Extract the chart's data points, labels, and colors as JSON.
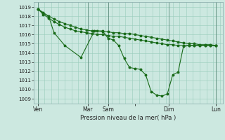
{
  "background_color": "#cce8e0",
  "grid_color": "#99ccbb",
  "line_color": "#1a6b1a",
  "marker_color": "#1a6b1a",
  "xlabel_text": "Pression niveau de la mer( hPa )",
  "ylim": [
    1008.5,
    1019.5
  ],
  "yticks": [
    1009,
    1010,
    1011,
    1012,
    1013,
    1014,
    1015,
    1016,
    1017,
    1018,
    1019
  ],
  "xlim": [
    0,
    14.0
  ],
  "day_positions": [
    0.3,
    4.0,
    5.5,
    7.5,
    10.0,
    13.5
  ],
  "day_labels": [
    "Ven",
    "Mar",
    "Sam",
    "",
    "Dim",
    "Lun"
  ],
  "vline_positions": [
    0.3,
    4.0,
    5.5,
    10.0,
    13.5
  ],
  "line1": {
    "x": [
      0.3,
      0.7,
      1.1,
      1.5,
      1.9,
      2.3,
      2.7,
      3.1,
      3.5,
      3.9,
      4.3,
      4.7,
      5.1,
      5.5,
      5.9,
      6.3,
      6.7,
      7.1,
      7.5,
      7.9,
      8.3,
      8.7,
      9.1,
      9.5,
      9.9,
      10.3,
      10.7,
      11.1,
      11.5,
      11.9,
      12.3,
      12.7,
      13.1,
      13.5
    ],
    "y": [
      1018.8,
      1018.4,
      1018.0,
      1017.7,
      1017.4,
      1017.2,
      1017.0,
      1016.8,
      1016.6,
      1016.5,
      1016.4,
      1016.4,
      1016.3,
      1016.3,
      1016.2,
      1016.2,
      1016.1,
      1016.1,
      1016.0,
      1015.9,
      1015.8,
      1015.7,
      1015.6,
      1015.5,
      1015.4,
      1015.3,
      1015.2,
      1015.1,
      1015.0,
      1015.0,
      1014.9,
      1014.9,
      1014.9,
      1014.8
    ]
  },
  "line2": {
    "x": [
      0.3,
      0.7,
      1.1,
      1.5,
      1.9,
      2.3,
      2.7,
      3.1,
      3.5,
      3.9,
      4.3,
      4.7,
      5.1,
      5.5,
      5.9,
      6.3,
      6.7,
      7.1,
      7.5,
      7.9,
      8.3,
      8.7,
      9.1,
      9.5,
      9.9,
      10.3,
      10.7,
      11.1,
      11.5,
      11.9,
      12.3,
      12.7,
      13.1,
      13.5
    ],
    "y": [
      1018.8,
      1018.2,
      1017.8,
      1017.4,
      1017.1,
      1016.8,
      1016.6,
      1016.4,
      1016.3,
      1016.2,
      1016.1,
      1016.0,
      1016.0,
      1015.9,
      1015.8,
      1015.8,
      1015.7,
      1015.6,
      1015.5,
      1015.4,
      1015.3,
      1015.2,
      1015.1,
      1015.0,
      1014.9,
      1014.9,
      1014.8,
      1014.8,
      1014.8,
      1014.8,
      1014.8,
      1014.8,
      1014.8,
      1014.8
    ]
  },
  "line3": {
    "x": [
      0.3,
      0.7,
      1.1,
      1.5,
      2.3,
      3.5,
      4.5,
      5.1,
      5.5,
      5.9,
      6.3,
      6.7,
      7.1,
      7.5,
      7.9,
      8.3,
      8.7,
      9.1,
      9.5,
      9.9,
      10.3,
      10.7,
      11.1,
      11.5,
      11.9,
      12.3,
      12.7,
      13.1,
      13.5
    ],
    "y": [
      1018.8,
      1018.3,
      1018.0,
      1016.2,
      1014.8,
      1013.5,
      1016.4,
      1016.4,
      1015.6,
      1015.4,
      1014.8,
      1013.4,
      1012.4,
      1012.3,
      1012.2,
      1011.6,
      1009.8,
      1009.4,
      1009.3,
      1009.5,
      1011.6,
      1011.9,
      1014.7,
      1014.8,
      1014.8,
      1014.8,
      1014.8,
      1014.8,
      1014.8
    ]
  },
  "figsize": [
    3.2,
    2.0
  ],
  "dpi": 100
}
